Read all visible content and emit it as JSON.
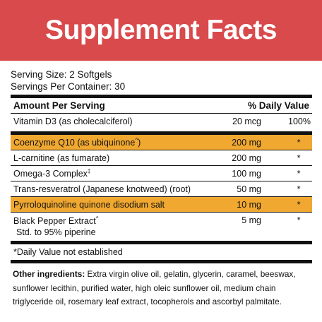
{
  "title": "Supplement Facts",
  "colors": {
    "banner": "#d94a4c",
    "highlight": "#f0a830"
  },
  "serving_size": "Serving Size: 2 Softgels",
  "servings_per_container": "Servings Per Container: 30",
  "header": {
    "amount": "Amount Per Serving",
    "dv": "% Daily Value"
  },
  "vitamin": {
    "name": "Vitamin D3 (as cholecalciferol)",
    "amount": "20 mcg",
    "dv": "100%"
  },
  "rows": [
    {
      "name": "Coenzyme Q10  (as ubiquinone",
      "sup": "^",
      "paren": ")",
      "amount": "200 mg",
      "dv": "*",
      "highlight": true
    },
    {
      "name": "L-carnitine (as fumarate)",
      "sup": "",
      "paren": "",
      "amount": "200 mg",
      "dv": "*",
      "highlight": false
    },
    {
      "name": "Omega-3 Complex",
      "sup": "‡",
      "paren": "",
      "amount": "100 mg",
      "dv": "*",
      "highlight": false
    },
    {
      "name": "Trans-resveratrol (Japanese knotweed) (root)",
      "sup": "",
      "paren": "",
      "amount": "50 mg",
      "dv": "*",
      "highlight": false
    },
    {
      "name": "Pyrroloquinoline quinone disodium salt",
      "sup": "",
      "paren": "",
      "amount": "10 mg",
      "dv": "*",
      "highlight": true
    }
  ],
  "pepper": {
    "name": "Black Pepper Extract",
    "sup": "^",
    "sub": "Std. to 95% piperine",
    "amount": "5 mg",
    "dv": "*"
  },
  "footnote": "*Daily Value not established",
  "other_label": "Other ingredients:",
  "other_text": " Extra virgin olive oil, gelatin, glycerin, caramel, beeswax, sunflower lecithin, purified water, high oleic sunflower oil, medium chain triglyceride oil, rosemary leaf extract, tocopherols and ascorbyl palmitate."
}
